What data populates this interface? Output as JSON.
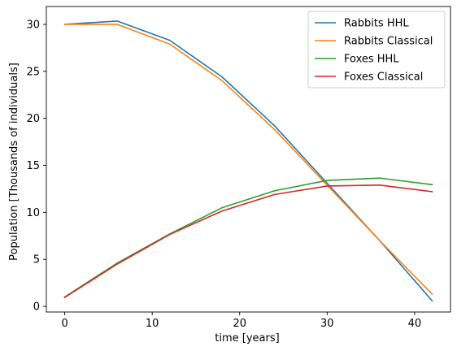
{
  "chart_data": {
    "type": "line",
    "title": "",
    "xlabel": "time [years]",
    "ylabel": "Population [Thousands of individuals]",
    "xlim": [
      -2.1,
      44.1
    ],
    "ylim": [
      -0.6,
      31.9
    ],
    "xticks": [
      0,
      10,
      20,
      30,
      40
    ],
    "yticks": [
      0,
      5,
      10,
      15,
      20,
      25,
      30
    ],
    "grid": false,
    "legend_position": "top-right",
    "series": [
      {
        "name": "Rabbits HHL",
        "color": "#1f77b4",
        "x": [
          0,
          6,
          12,
          18,
          24,
          30,
          36,
          42
        ],
        "y": [
          30.0,
          30.35,
          28.3,
          24.4,
          19.2,
          13.1,
          7.0,
          0.6
        ]
      },
      {
        "name": "Rabbits Classical",
        "color": "#ff7f0e",
        "x": [
          0,
          6,
          12,
          18,
          24,
          30,
          36,
          42
        ],
        "y": [
          30.0,
          30.0,
          27.9,
          24.0,
          18.8,
          12.9,
          7.0,
          1.3
        ]
      },
      {
        "name": "Foxes HHL",
        "color": "#2ca02c",
        "x": [
          0,
          6,
          12,
          18,
          24,
          30,
          36,
          42
        ],
        "y": [
          1.0,
          4.6,
          7.7,
          10.5,
          12.3,
          13.4,
          13.65,
          12.95
        ]
      },
      {
        "name": "Foxes Classical",
        "color": "#d62728",
        "x": [
          0,
          6,
          12,
          18,
          24,
          30,
          36,
          42
        ],
        "y": [
          0.95,
          4.5,
          7.65,
          10.15,
          11.9,
          12.8,
          12.9,
          12.2
        ]
      }
    ]
  }
}
